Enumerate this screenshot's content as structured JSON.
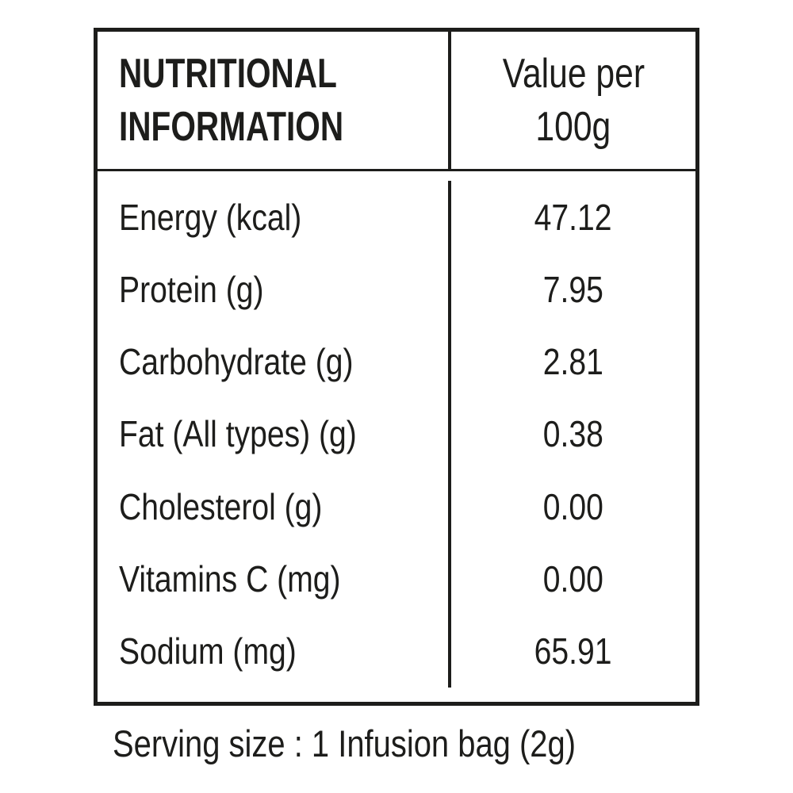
{
  "colors": {
    "text": "#1d1d1b",
    "border": "#1d1d1b",
    "background": "#ffffff"
  },
  "table": {
    "header": {
      "title_line1": "NUTRITIONAL",
      "title_line2": "INFORMATION",
      "value_col_line1": "Value per",
      "value_col_line2": "100g"
    },
    "rows": [
      {
        "label": "Energy (kcal)",
        "value": "47.12"
      },
      {
        "label": "Protein (g)",
        "value": "7.95"
      },
      {
        "label": "Carbohydrate (g)",
        "value": "2.81"
      },
      {
        "label": "Fat (All types) (g)",
        "value": "0.38"
      },
      {
        "label": "Cholesterol (g)",
        "value": "0.00"
      },
      {
        "label": "Vitamins C (mg)",
        "value": "0.00"
      },
      {
        "label": "Sodium (mg)",
        "value": "65.91"
      }
    ],
    "caption": "Serving size : 1 Infusion bag (2g)"
  }
}
